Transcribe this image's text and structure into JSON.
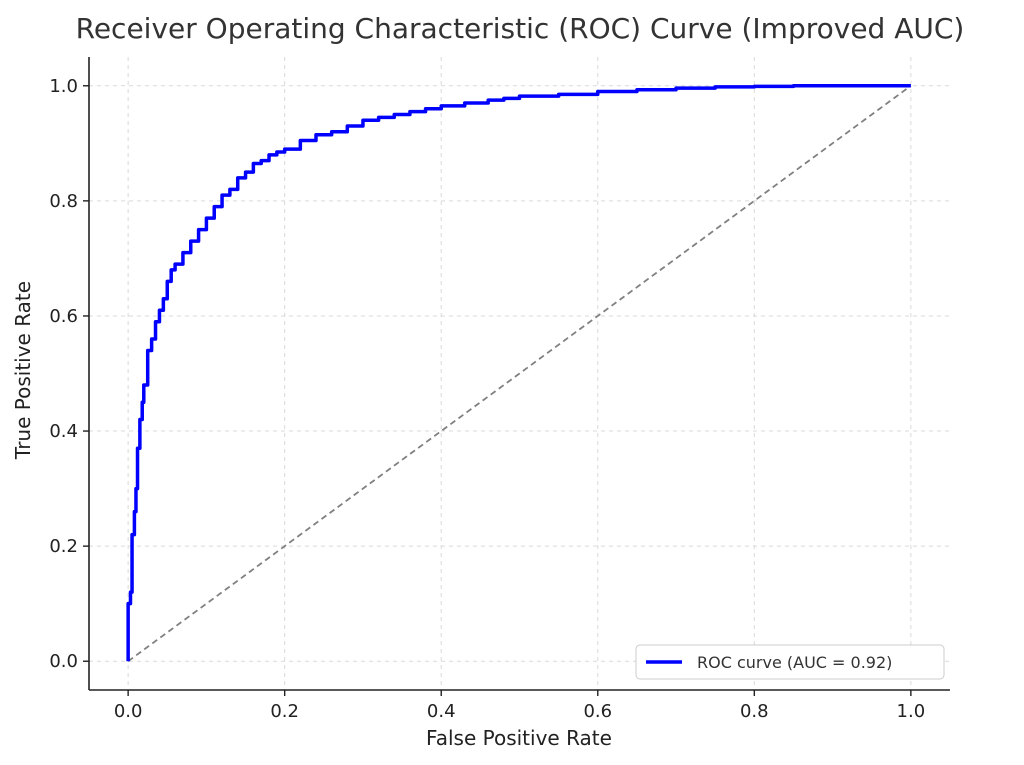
{
  "chart_data": {
    "type": "line",
    "title": "Receiver Operating Characteristic (ROC) Curve (Improved AUC)",
    "xlabel": "False Positive Rate",
    "ylabel": "True Positive Rate",
    "xlim": [
      -0.05,
      1.05
    ],
    "ylim": [
      -0.05,
      1.05
    ],
    "xticks": [
      0.0,
      0.2,
      0.4,
      0.6,
      0.8,
      1.0
    ],
    "yticks": [
      0.0,
      0.2,
      0.4,
      0.6,
      0.8,
      1.0
    ],
    "xtick_labels": [
      "0.0",
      "0.2",
      "0.4",
      "0.6",
      "0.8",
      "1.0"
    ],
    "ytick_labels": [
      "0.0",
      "0.2",
      "0.4",
      "0.6",
      "0.8",
      "1.0"
    ],
    "grid": true,
    "legend_position": "lower-right",
    "series": [
      {
        "name": "ROC curve (AUC = 0.92)",
        "color": "#0000ff",
        "style": "solid",
        "x": [
          0.0,
          0.0,
          0.003,
          0.005,
          0.008,
          0.01,
          0.012,
          0.015,
          0.018,
          0.02,
          0.025,
          0.03,
          0.035,
          0.04,
          0.045,
          0.05,
          0.055,
          0.06,
          0.07,
          0.08,
          0.09,
          0.1,
          0.11,
          0.12,
          0.13,
          0.14,
          0.15,
          0.16,
          0.17,
          0.18,
          0.19,
          0.2,
          0.22,
          0.24,
          0.26,
          0.28,
          0.3,
          0.32,
          0.34,
          0.36,
          0.38,
          0.4,
          0.43,
          0.46,
          0.48,
          0.5,
          0.55,
          0.6,
          0.65,
          0.7,
          0.75,
          0.8,
          0.85,
          0.9,
          1.0
        ],
        "y": [
          0.0,
          0.1,
          0.12,
          0.22,
          0.26,
          0.3,
          0.37,
          0.42,
          0.45,
          0.48,
          0.54,
          0.56,
          0.59,
          0.61,
          0.63,
          0.66,
          0.68,
          0.69,
          0.71,
          0.73,
          0.75,
          0.77,
          0.79,
          0.81,
          0.82,
          0.84,
          0.85,
          0.865,
          0.87,
          0.88,
          0.885,
          0.89,
          0.905,
          0.915,
          0.92,
          0.93,
          0.94,
          0.945,
          0.95,
          0.955,
          0.96,
          0.965,
          0.97,
          0.975,
          0.978,
          0.982,
          0.985,
          0.99,
          0.993,
          0.996,
          0.998,
          0.999,
          1.0,
          1.0,
          1.0
        ]
      },
      {
        "color": "#808080",
        "style": "dashed",
        "x": [
          0.0,
          1.0
        ],
        "y": [
          0.0,
          1.0
        ]
      }
    ],
    "legend": [
      {
        "label": "ROC curve (AUC = 0.92)",
        "color": "#0000ff"
      }
    ]
  }
}
